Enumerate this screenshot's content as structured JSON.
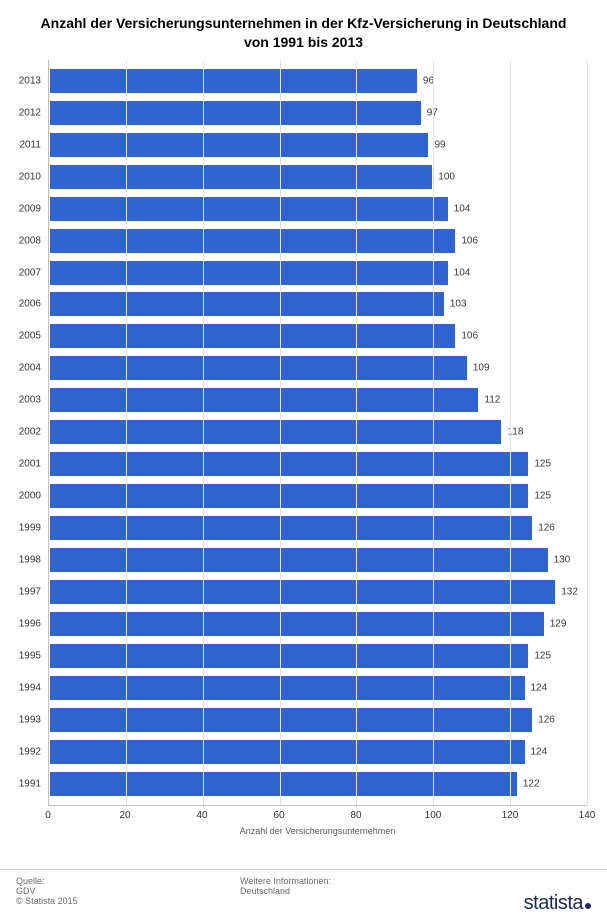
{
  "chart": {
    "type": "bar-horizontal",
    "title": "Anzahl der Versicherungsunternehmen in der Kfz-Versicherung in Deutschland von 1991 bis 2013",
    "title_fontsize": 14,
    "title_color": "#000000",
    "x_axis_label": "Anzahl der Versicherungsunternehmen",
    "xlim_min": 0,
    "xlim_max": 140,
    "xtick_step": 20,
    "xticks": [
      0,
      20,
      40,
      60,
      80,
      100,
      120,
      140
    ],
    "bar_color": "#2f64cf",
    "bar_border_color": "#ffffff",
    "background_color": "#ffffff",
    "grid_color": "#dfdfdf",
    "axis_color": "#bfbfbf",
    "tick_label_color": "#333333",
    "tick_fontsize": 10,
    "value_label_color": "#393939",
    "value_fontsize": 10,
    "categories": [
      "2013",
      "2012",
      "2011",
      "2010",
      "2009",
      "2008",
      "2007",
      "2006",
      "2005",
      "2004",
      "2003",
      "2002",
      "2001",
      "2000",
      "1999",
      "1998",
      "1997",
      "1996",
      "1995",
      "1994",
      "1993",
      "1992",
      "1991"
    ],
    "values": [
      96,
      97,
      99,
      100,
      104,
      106,
      104,
      103,
      106,
      109,
      112,
      118,
      125,
      125,
      126,
      130,
      132,
      129,
      125,
      124,
      126,
      124,
      122
    ]
  },
  "footer": {
    "source_label": "Quelle:",
    "source_value": "GDV",
    "copyright": "© Statista 2015",
    "more_info_label": "Weitere Informationen:",
    "more_info_value": "Deutschland",
    "logo_text": "statista",
    "footer_fontsize": 9,
    "footer_color": "#6a6a6a",
    "logo_color": "#1a2a55"
  }
}
